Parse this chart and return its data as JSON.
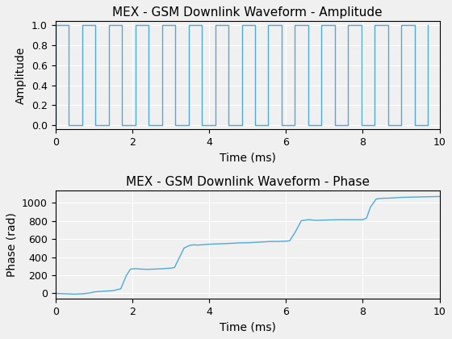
{
  "title1": "MEX - GSM Downlink Waveform - Amplitude",
  "title2": "MEX - GSM Downlink Waveform - Phase",
  "xlabel": "Time (ms)",
  "ylabel1": "Amplitude",
  "ylabel2": "Phase (rad)",
  "line_color": "#4daadb",
  "bg_color": "#f0f0f0",
  "axes_bg": "#f0f0f0",
  "grid_color": "#ffffff",
  "spine_color": "#000000",
  "xlim": [
    0,
    10
  ],
  "ylim1": [
    -0.04,
    1.04
  ],
  "ylim2": [
    -60,
    1130
  ],
  "amp_period": 0.693,
  "amp_duty": 0.5,
  "phase_key_points": [
    [
      0.0,
      0.0
    ],
    [
      0.3,
      -5.0
    ],
    [
      0.5,
      -8.0
    ],
    [
      0.7,
      -5.0
    ],
    [
      0.9,
      5.0
    ],
    [
      1.0,
      15.0
    ],
    [
      1.1,
      20.0
    ],
    [
      1.3,
      25.0
    ],
    [
      1.5,
      30.0
    ],
    [
      1.7,
      50.0
    ],
    [
      1.85,
      200.0
    ],
    [
      1.95,
      265.0
    ],
    [
      2.0,
      270.0
    ],
    [
      2.1,
      272.0
    ],
    [
      2.2,
      268.0
    ],
    [
      2.4,
      265.0
    ],
    [
      2.6,
      268.0
    ],
    [
      2.8,
      272.0
    ],
    [
      3.0,
      278.0
    ],
    [
      3.1,
      285.0
    ],
    [
      3.35,
      500.0
    ],
    [
      3.5,
      530.0
    ],
    [
      3.6,
      535.0
    ],
    [
      3.7,
      532.0
    ],
    [
      3.8,
      535.0
    ],
    [
      4.0,
      542.0
    ],
    [
      4.2,
      545.0
    ],
    [
      4.4,
      548.0
    ],
    [
      4.6,
      552.0
    ],
    [
      4.8,
      557.0
    ],
    [
      5.0,
      558.0
    ],
    [
      5.2,
      562.0
    ],
    [
      5.4,
      567.0
    ],
    [
      5.6,
      572.0
    ],
    [
      5.8,
      572.0
    ],
    [
      6.0,
      575.0
    ],
    [
      6.1,
      580.0
    ],
    [
      6.25,
      680.0
    ],
    [
      6.4,
      800.0
    ],
    [
      6.5,
      808.0
    ],
    [
      6.6,
      812.0
    ],
    [
      6.7,
      808.0
    ],
    [
      6.8,
      805.0
    ],
    [
      7.0,
      808.0
    ],
    [
      7.2,
      810.0
    ],
    [
      7.4,
      812.0
    ],
    [
      7.6,
      812.0
    ],
    [
      7.8,
      812.0
    ],
    [
      8.0,
      812.0
    ],
    [
      8.1,
      830.0
    ],
    [
      8.2,
      950.0
    ],
    [
      8.35,
      1040.0
    ],
    [
      8.5,
      1048.0
    ],
    [
      8.7,
      1050.0
    ],
    [
      9.0,
      1058.0
    ],
    [
      9.2,
      1060.0
    ],
    [
      9.5,
      1063.0
    ],
    [
      9.7,
      1065.0
    ],
    [
      10.0,
      1068.0
    ]
  ],
  "yticks1": [
    0,
    0.2,
    0.4,
    0.6,
    0.8,
    1
  ],
  "yticks2": [
    0,
    200,
    400,
    600,
    800,
    1000
  ],
  "xticks": [
    0,
    2,
    4,
    6,
    8,
    10
  ],
  "title_fontsize": 11,
  "label_fontsize": 10,
  "tick_fontsize": 9
}
